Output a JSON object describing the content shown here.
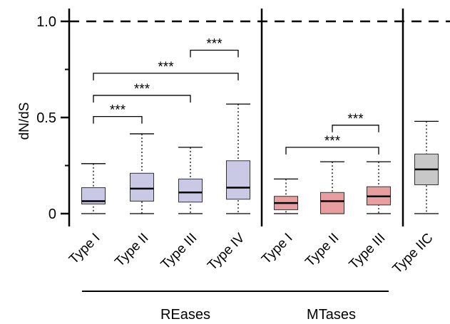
{
  "chart_data": {
    "type": "box",
    "ylabel": "dN/dS",
    "ylim": [
      0,
      1.0
    ],
    "yticks": [
      {
        "value": 0,
        "label": "0"
      },
      {
        "value": 0.5,
        "label": "0.5"
      },
      {
        "value": 1.0,
        "label": "1.0"
      }
    ],
    "reference_line": {
      "value": 1.0,
      "style": "dashed"
    },
    "boxes": [
      {
        "category": "Type I",
        "group": "REases",
        "color": "#c9c9e6",
        "whisker_low": 0,
        "q1": 0.05,
        "median": 0.065,
        "q3": 0.135,
        "whisker_high": 0.26
      },
      {
        "category": "Type II",
        "group": "REases",
        "color": "#c9c9e6",
        "whisker_low": 0,
        "q1": 0.065,
        "median": 0.13,
        "q3": 0.21,
        "whisker_high": 0.415
      },
      {
        "category": "Type III",
        "group": "REases",
        "color": "#c9c9e6",
        "whisker_low": 0,
        "q1": 0.06,
        "median": 0.11,
        "q3": 0.18,
        "whisker_high": 0.345
      },
      {
        "category": "Type IV",
        "group": "REases",
        "color": "#c9c9e6",
        "whisker_low": 0,
        "q1": 0.075,
        "median": 0.135,
        "q3": 0.275,
        "whisker_high": 0.57
      },
      {
        "category": "Type I",
        "group": "MTases",
        "color": "#e89e9e",
        "whisker_low": 0,
        "q1": 0.02,
        "median": 0.055,
        "q3": 0.09,
        "whisker_high": 0.18
      },
      {
        "category": "Type II",
        "group": "MTases",
        "color": "#e89e9e",
        "whisker_low": 0,
        "q1": 0,
        "median": 0.065,
        "q3": 0.11,
        "whisker_high": 0.27
      },
      {
        "category": "Type III",
        "group": "MTases",
        "color": "#e89e9e",
        "whisker_low": 0,
        "q1": 0.045,
        "median": 0.09,
        "q3": 0.14,
        "whisker_high": 0.27
      },
      {
        "category": "Type IIC",
        "group": "",
        "color": "#c8c8c8",
        "whisker_low": 0,
        "q1": 0.15,
        "median": 0.23,
        "q3": 0.31,
        "whisker_high": 0.48
      }
    ],
    "groups": [
      {
        "name": "REases",
        "boxes": [
          0,
          1,
          2,
          3
        ]
      },
      {
        "name": "MTases",
        "boxes": [
          4,
          5,
          6
        ]
      }
    ],
    "significance": [
      {
        "from": 0,
        "to": 1,
        "label": "***",
        "y": 0.505
      },
      {
        "from": 0,
        "to": 2,
        "label": "***",
        "y": 0.615
      },
      {
        "from": 0,
        "to": 3,
        "label": "***",
        "y": 0.73
      },
      {
        "from": 2,
        "to": 3,
        "label": "***",
        "y": 0.85
      },
      {
        "from": 5,
        "to": 6,
        "label": "***",
        "y": 0.46
      },
      {
        "from": 4,
        "to": 6,
        "label": "***",
        "y": 0.345
      }
    ]
  }
}
